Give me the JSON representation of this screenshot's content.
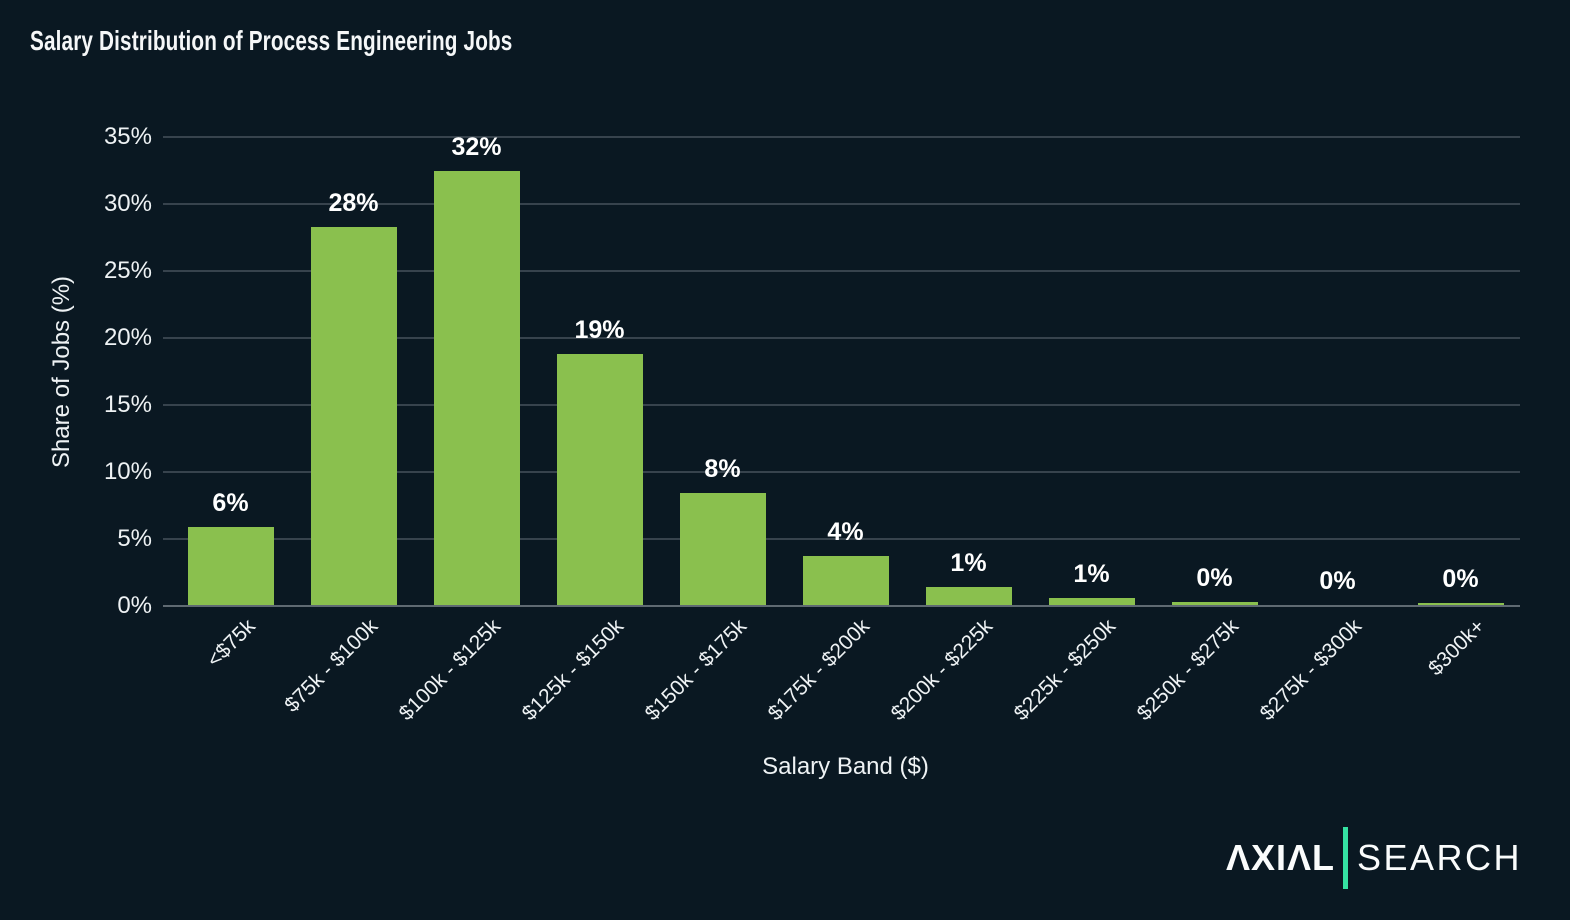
{
  "chart_data": {
    "type": "bar",
    "title": "Salary Distribution of Process Engineering Jobs",
    "xlabel": "Salary Band ($)",
    "ylabel": "Share of Jobs (%)",
    "categories": [
      "<$75k",
      "$75k - $100k",
      "$100k - $125k",
      "$125k - $150k",
      "$150k - $175k",
      "$175k - $200k",
      "$200k - $225k",
      "$225k - $250k",
      "$250k - $275k",
      "$275k - $300k",
      "$300k+"
    ],
    "values": [
      5.9,
      28.3,
      32.5,
      18.8,
      8.4,
      3.7,
      1.4,
      0.6,
      0.3,
      0.05,
      0.2
    ],
    "bar_labels": [
      "6%",
      "28%",
      "32%",
      "19%",
      "8%",
      "4%",
      "1%",
      "1%",
      "0%",
      "0%",
      "0%"
    ],
    "ylim": [
      0,
      35
    ],
    "yticks": [
      0,
      5,
      10,
      15,
      20,
      25,
      30,
      35
    ],
    "ytick_labels": [
      "0%",
      "5%",
      "10%",
      "15%",
      "20%",
      "25%",
      "30%",
      "35%"
    ],
    "grid": true,
    "legend": null,
    "colors": {
      "bar": "#8ac04e",
      "background": "#0a1822",
      "gridline": "#37434d",
      "axis_line": "#5f6a72",
      "text": "#f3f6f7"
    }
  },
  "branding": {
    "wordmark_left": "ΛXIΛL",
    "wordmark_right": "SEARCH",
    "divider_color": "#35e2a2"
  }
}
